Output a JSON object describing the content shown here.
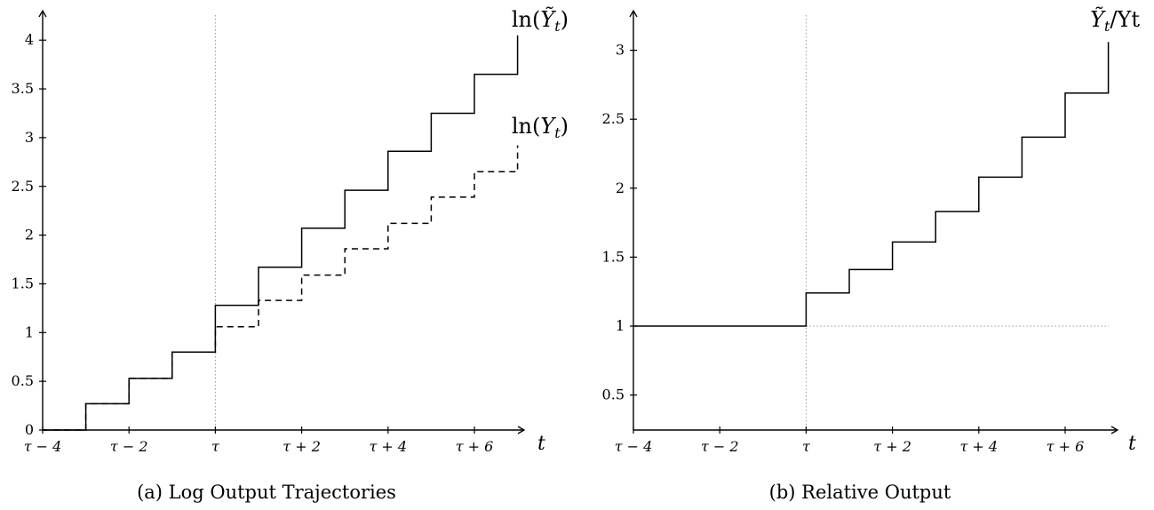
{
  "chart_data": [
    {
      "type": "line",
      "step": true,
      "caption": "(a) Log Output Trajectories",
      "xlabel": "t",
      "ylabel": "",
      "ylim": [
        0,
        4
      ],
      "xlim": [
        -4,
        7
      ],
      "x_ticks": [
        {
          "value": -4,
          "label": "τ − 4"
        },
        {
          "value": -2,
          "label": "τ − 2"
        },
        {
          "value": 0,
          "label": "τ"
        },
        {
          "value": 2,
          "label": "τ + 2"
        },
        {
          "value": 4,
          "label": "τ + 4"
        },
        {
          "value": 6,
          "label": "τ + 6"
        }
      ],
      "y_ticks": [
        {
          "value": 0,
          "label": "0"
        },
        {
          "value": 0.5,
          "label": "0.5"
        },
        {
          "value": 1,
          "label": "1"
        },
        {
          "value": 1.5,
          "label": "1.5"
        },
        {
          "value": 2,
          "label": "2"
        },
        {
          "value": 2.5,
          "label": "2.5"
        },
        {
          "value": 3,
          "label": "3"
        },
        {
          "value": 3.5,
          "label": "3.5"
        },
        {
          "value": 4,
          "label": "4"
        }
      ],
      "reference_line_x": 0,
      "series": [
        {
          "name": "ln(Ỹt)",
          "label_base": "ln(",
          "label_var": "Ỹ",
          "label_sub": "t",
          "label_close": ")",
          "style": "solid",
          "x": [
            -4,
            -3,
            -2,
            -1,
            0,
            1,
            2,
            3,
            4,
            5,
            6,
            7
          ],
          "values": [
            0,
            0.27,
            0.53,
            0.8,
            1.28,
            1.67,
            2.07,
            2.46,
            2.86,
            3.25,
            3.65,
            4.05
          ]
        },
        {
          "name": "ln(Yt)",
          "label_base": "ln(",
          "label_var": "Y",
          "label_sub": "t",
          "label_close": ")",
          "style": "dashed",
          "x": [
            -4,
            -3,
            -2,
            -1,
            0,
            1,
            2,
            3,
            4,
            5,
            6,
            7
          ],
          "values": [
            0,
            0.27,
            0.53,
            0.8,
            1.06,
            1.33,
            1.59,
            1.86,
            2.12,
            2.39,
            2.65,
            2.92
          ]
        }
      ]
    },
    {
      "type": "line",
      "step": true,
      "caption": "(b) Relative Output",
      "xlabel": "t",
      "ylabel": "",
      "ylim": [
        0.25,
        3.25
      ],
      "xlim": [
        -4,
        7
      ],
      "x_ticks": [
        {
          "value": -4,
          "label": "τ − 4"
        },
        {
          "value": -2,
          "label": "τ − 2"
        },
        {
          "value": 0,
          "label": "τ"
        },
        {
          "value": 2,
          "label": "τ + 2"
        },
        {
          "value": 4,
          "label": "τ + 4"
        },
        {
          "value": 6,
          "label": "τ + 6"
        }
      ],
      "y_ticks": [
        {
          "value": 0.5,
          "label": "0.5"
        },
        {
          "value": 1,
          "label": "1"
        },
        {
          "value": 1.5,
          "label": "1.5"
        },
        {
          "value": 2,
          "label": "2"
        },
        {
          "value": 2.5,
          "label": "2.5"
        },
        {
          "value": 3,
          "label": "3"
        }
      ],
      "reference_line_x": 0,
      "reference_line_y": 1,
      "series": [
        {
          "name": "Ỹt/Yt",
          "label_base": "",
          "label_var": "Ỹ",
          "label_sub": "t",
          "label_close": "/Yt",
          "style": "solid",
          "x": [
            -4,
            -3,
            -2,
            -1,
            0,
            1,
            2,
            3,
            4,
            5,
            6,
            7
          ],
          "values": [
            1,
            1,
            1,
            1,
            1.24,
            1.41,
            1.61,
            1.83,
            2.08,
            2.37,
            2.69,
            3.06
          ]
        }
      ]
    }
  ]
}
